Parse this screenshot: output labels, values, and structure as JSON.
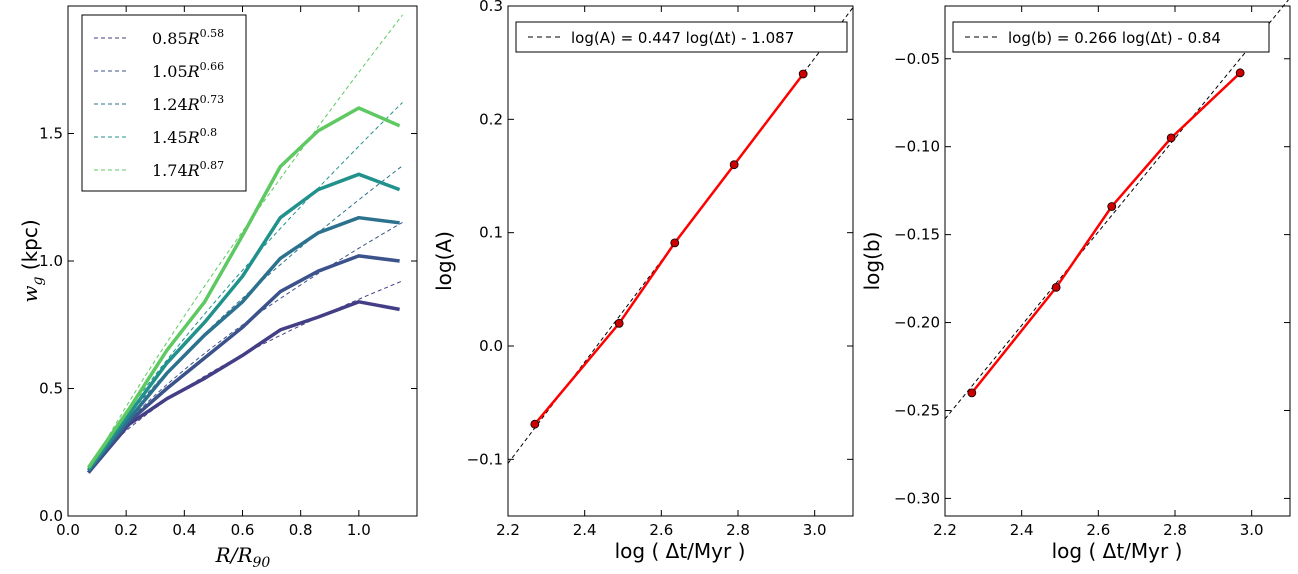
{
  "chart_data": [
    {
      "type": "line",
      "xlabel": "R/R90",
      "ylabel": "w_g (kpc)",
      "xlim": [
        0.0,
        1.2
      ],
      "ylim": [
        0.0,
        2.0
      ],
      "xticks": [
        0.0,
        0.2,
        0.4,
        0.6,
        0.8,
        1.0
      ],
      "yticks": [
        0.0,
        0.5,
        1.0,
        1.5
      ],
      "legend_position": "top-left",
      "grid": false,
      "x": [
        0.07,
        0.21,
        0.34,
        0.47,
        0.6,
        0.73,
        0.86,
        1.0,
        1.14
      ],
      "series": [
        {
          "values": [
            0.17,
            0.36,
            0.46,
            0.54,
            0.63,
            0.73,
            0.78,
            0.84,
            0.81
          ],
          "color": "#433e85"
        },
        {
          "values": [
            0.17,
            0.37,
            0.5,
            0.62,
            0.74,
            0.88,
            0.96,
            1.02,
            1.0
          ],
          "color": "#3b528b"
        },
        {
          "values": [
            0.18,
            0.38,
            0.56,
            0.71,
            0.84,
            1.01,
            1.11,
            1.17,
            1.15
          ],
          "color": "#2c728e"
        },
        {
          "values": [
            0.18,
            0.4,
            0.6,
            0.76,
            0.94,
            1.17,
            1.28,
            1.34,
            1.28
          ],
          "color": "#21918c"
        },
        {
          "values": [
            0.19,
            0.42,
            0.65,
            0.84,
            1.1,
            1.37,
            1.51,
            1.6,
            1.53
          ],
          "color": "#5ec962"
        }
      ],
      "fits": [
        {
          "a": 0.85,
          "b": 0.58,
          "legend": "0.85R^0.58",
          "coef": "0.85",
          "exp": "0.58",
          "color": "#433e85"
        },
        {
          "a": 1.05,
          "b": 0.66,
          "legend": "1.05R^0.66",
          "coef": "1.05",
          "exp": "0.66",
          "color": "#3b528b"
        },
        {
          "a": 1.24,
          "b": 0.73,
          "legend": "1.24R^0.73",
          "coef": "1.24",
          "exp": "0.73",
          "color": "#2c728e"
        },
        {
          "a": 1.45,
          "b": 0.8,
          "legend": "1.45R^0.8",
          "coef": "1.45",
          "exp": "0.8",
          "color": "#21918c"
        },
        {
          "a": 1.74,
          "b": 0.87,
          "legend": "1.74R^0.87",
          "coef": "1.74",
          "exp": "0.87",
          "color": "#5ec962"
        }
      ]
    },
    {
      "type": "line",
      "xlabel": "log ( Δt/Myr )",
      "ylabel": "log(A)",
      "xlim": [
        2.2,
        3.1
      ],
      "ylim": [
        -0.15,
        0.3
      ],
      "xticks": [
        2.2,
        2.4,
        2.6,
        2.8,
        3.0
      ],
      "yticks": [
        -0.1,
        0.0,
        0.1,
        0.2,
        0.3
      ],
      "legend_position": "top",
      "grid": false,
      "x": [
        2.27,
        2.49,
        2.635,
        2.79,
        2.97
      ],
      "values": [
        -0.069,
        0.02,
        0.091,
        0.16,
        0.24
      ],
      "color": "#ff0000",
      "fit": {
        "slope": 0.447,
        "intercept": -1.087,
        "legend": "log(A) = 0.447 log(Δt) - 1.087"
      }
    },
    {
      "type": "line",
      "xlabel": "log ( Δt/Myr )",
      "ylabel": "log(b)",
      "xlim": [
        2.2,
        3.1
      ],
      "ylim": [
        -0.31,
        -0.02
      ],
      "xticks": [
        2.2,
        2.4,
        2.6,
        2.8,
        3.0
      ],
      "yticks": [
        -0.3,
        -0.25,
        -0.2,
        -0.15,
        -0.1,
        -0.05
      ],
      "legend_position": "top",
      "grid": false,
      "x": [
        2.27,
        2.49,
        2.635,
        2.79,
        2.97
      ],
      "values": [
        -0.24,
        -0.18,
        -0.134,
        -0.095,
        -0.058
      ],
      "color": "#ff0000",
      "fit": {
        "slope": 0.266,
        "intercept": -0.84,
        "legend": "log(b) = 0.266 log(Δt) - 0.84"
      }
    }
  ]
}
